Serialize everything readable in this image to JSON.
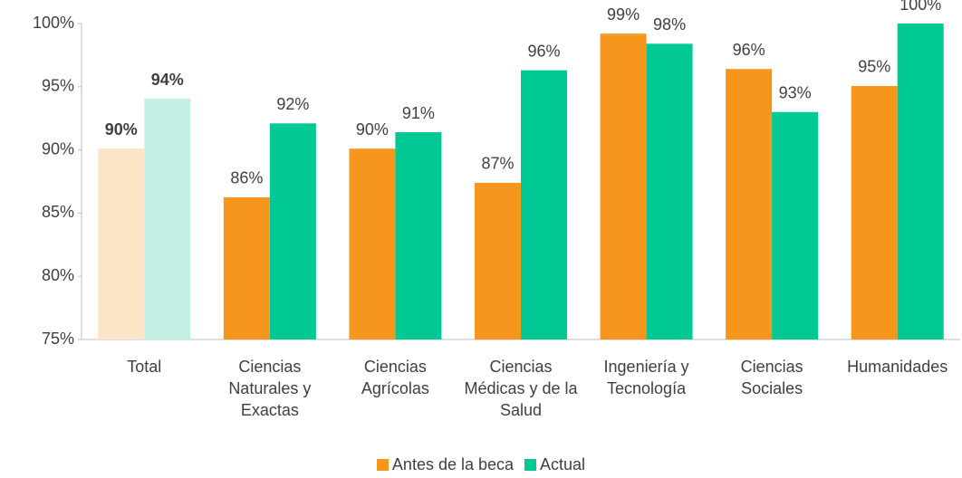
{
  "chart_data": {
    "type": "bar",
    "categories": [
      "Total",
      "Ciencias Naturales y Exactas",
      "Ciencias Agrícolas",
      "Ciencias Médicas y de la Salud",
      "Ingeniería y Tecnología",
      "Ciencias Sociales",
      "Humanidades"
    ],
    "series": [
      {
        "name": "Antes de la beca",
        "color": "#f7961d",
        "colors": [
          "#fce4c6",
          "#f7961d",
          "#f7961d",
          "#f7961d",
          "#f7961d",
          "#f7961d",
          "#f7961d"
        ],
        "values": [
          90.1,
          86.25,
          90.1,
          87.4,
          99.2,
          96.4,
          95.06
        ],
        "value_labels": [
          "90%",
          "86%",
          "90%",
          "87%",
          "99%",
          "96%",
          "95%"
        ]
      },
      {
        "name": "Actual",
        "color": "#00c995",
        "colors": [
          "#c2f0e4",
          "#00c995",
          "#00c995",
          "#00c995",
          "#00c995",
          "#00c995",
          "#00c995"
        ],
        "values": [
          94.05,
          92.1,
          91.4,
          96.3,
          98.4,
          93.0,
          100
        ],
        "value_labels": [
          "94%",
          "92%",
          "91%",
          "96%",
          "98%",
          "93%",
          "100%"
        ]
      }
    ],
    "ylim": [
      75,
      100
    ],
    "yticks": [
      {
        "value": 75,
        "label": "75%"
      },
      {
        "value": 80,
        "label": "80%"
      },
      {
        "value": 85,
        "label": "85%"
      },
      {
        "value": 90,
        "label": "90%"
      },
      {
        "value": 95,
        "label": "95%"
      },
      {
        "value": 100,
        "label": "100%"
      }
    ],
    "legend": "bottom"
  }
}
